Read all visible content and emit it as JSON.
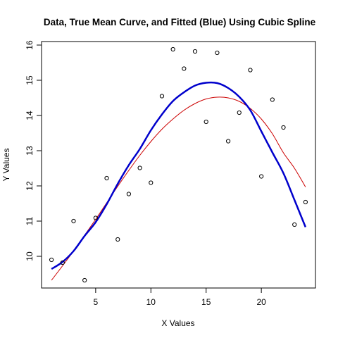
{
  "chart_data": {
    "type": "scatter",
    "title": "Data, True Mean Curve, and Fitted (Blue) Using Cubic Spline",
    "xlabel": "X Values",
    "ylabel": "Y Values",
    "xlim": [
      0.1,
      24.9
    ],
    "ylim": [
      9.1,
      16.1
    ],
    "xticks": [
      5,
      10,
      15,
      20
    ],
    "yticks": [
      10,
      11,
      12,
      13,
      14,
      15,
      16
    ],
    "grid": false,
    "legend": "none",
    "points": {
      "x": [
        1,
        2,
        3,
        4,
        5,
        6,
        7,
        8,
        9,
        10,
        11,
        12,
        13,
        14,
        15,
        16,
        17,
        18,
        19,
        20,
        21,
        22,
        23,
        24
      ],
      "y": [
        9.9,
        9.82,
        11.0,
        9.32,
        11.09,
        12.22,
        10.48,
        11.77,
        12.51,
        12.09,
        14.55,
        15.88,
        15.33,
        15.82,
        13.82,
        15.78,
        13.27,
        14.08,
        15.29,
        12.27,
        14.45,
        13.66,
        10.9,
        11.54
      ]
    },
    "series": [
      {
        "name": "True Mean",
        "color": "#cc0000",
        "x": [
          1,
          2,
          3,
          4,
          5,
          6,
          7,
          8,
          9,
          10,
          11,
          12,
          13,
          14,
          15,
          16,
          17,
          18,
          19,
          20,
          21,
          22,
          23,
          24
        ],
        "y": [
          9.32,
          9.73,
          10.15,
          10.6,
          11.05,
          11.52,
          11.99,
          12.44,
          12.87,
          13.26,
          13.61,
          13.9,
          14.15,
          14.34,
          14.47,
          14.52,
          14.5,
          14.4,
          14.2,
          13.9,
          13.48,
          12.94,
          12.5,
          11.97
        ]
      },
      {
        "name": "Fitted",
        "color": "#0000cc",
        "x": [
          1,
          2,
          3,
          4,
          5,
          6,
          7,
          8,
          9,
          10,
          11,
          12,
          13,
          14,
          15,
          16,
          17,
          18,
          19,
          20,
          21,
          22,
          23,
          24
        ],
        "y": [
          9.64,
          9.84,
          10.15,
          10.58,
          10.97,
          11.48,
          12.06,
          12.59,
          13.05,
          13.58,
          14.03,
          14.41,
          14.66,
          14.85,
          14.93,
          14.92,
          14.78,
          14.53,
          14.15,
          13.55,
          12.95,
          12.36,
          11.6,
          10.83
        ]
      }
    ]
  }
}
